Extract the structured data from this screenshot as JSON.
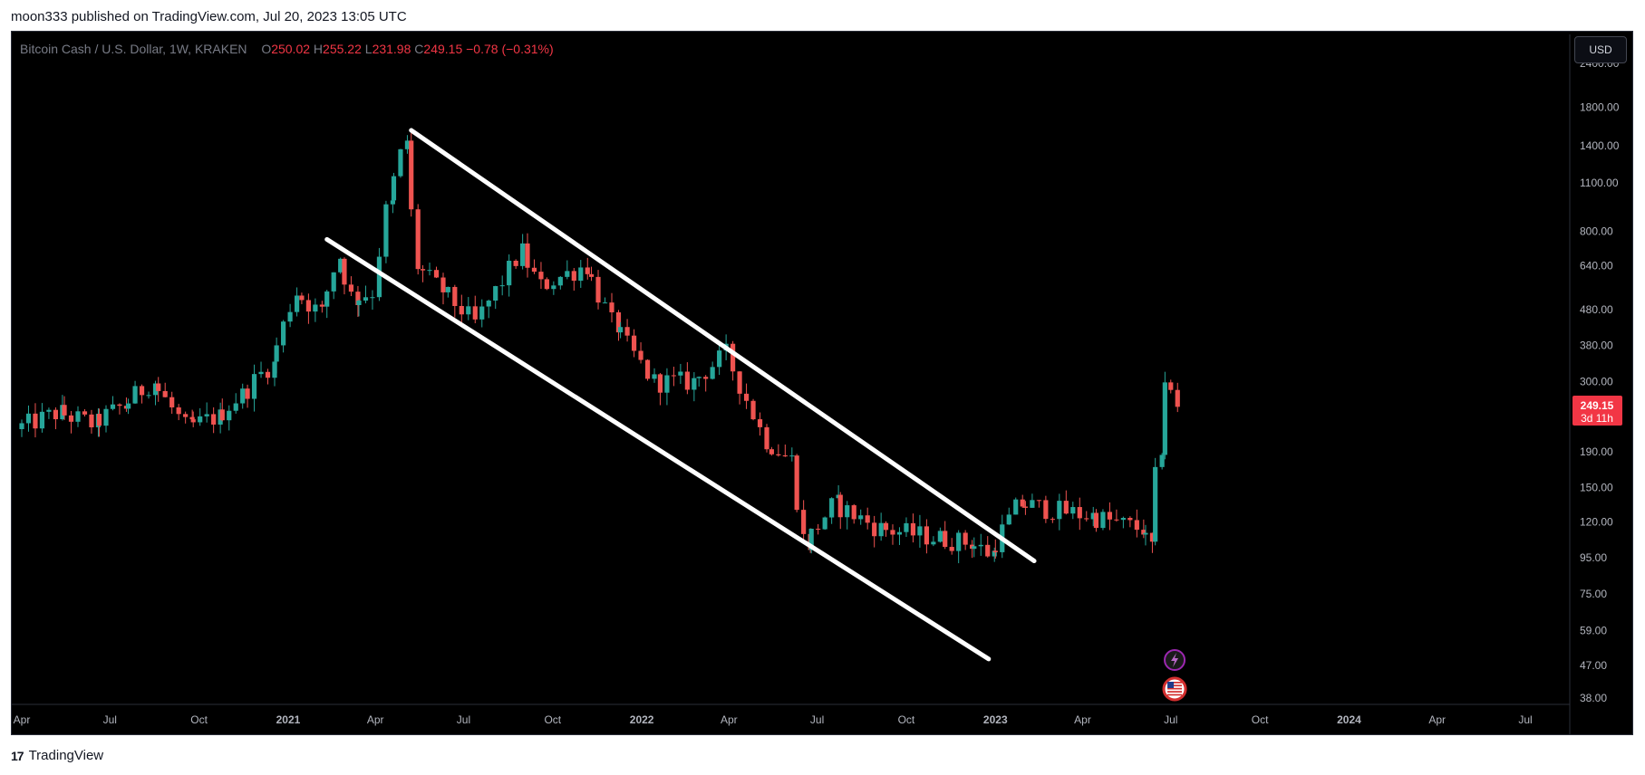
{
  "header": {
    "publish_text": "moon333 published on TradingView.com, Jul 20, 2023 13:05 UTC"
  },
  "legend": {
    "symbol": "Bitcoin Cash / U.S. Dollar, 1W, KRAKEN",
    "o_label": "O",
    "o_value": "250.02",
    "h_label": "H",
    "h_value": "255.22",
    "l_label": "L",
    "l_value": "231.98",
    "c_label": "C",
    "c_value": "249.15",
    "change": "−0.78 (−0.31%)"
  },
  "toolbar": {
    "currency_button": "USD"
  },
  "price_tag": {
    "price": "249.15",
    "countdown": "3d 11h"
  },
  "footer": {
    "brand": "TradingView",
    "logo_text": "17"
  },
  "colors": {
    "up": "#26a69a",
    "down": "#ef5350",
    "background": "#000000",
    "trendline": "#ffffff",
    "tag": "#f23645"
  },
  "icons": {
    "event_1": "lightning-icon",
    "event_2": "us-flag-icon"
  },
  "chart_data": {
    "type": "candlestick",
    "title": "Bitcoin Cash / U.S. Dollar, 1W, KRAKEN",
    "y_scale": "log",
    "y_ticks": [
      "2400.00",
      "1800.00",
      "1400.00",
      "1100.00",
      "800.00",
      "640.00",
      "480.00",
      "380.00",
      "300.00",
      "190.00",
      "150.00",
      "120.00",
      "95.00",
      "75.00",
      "59.00",
      "47.00",
      "38.00"
    ],
    "ylim": [
      36,
      2400
    ],
    "x_ticks": [
      "Apr",
      "Jul",
      "Oct",
      "2021",
      "Apr",
      "Jul",
      "Oct",
      "2022",
      "Apr",
      "Jul",
      "Oct",
      "2023",
      "Apr",
      "Jul",
      "Oct",
      "2024",
      "Apr",
      "Jul"
    ],
    "x_tick_dates": [
      "2020-04-01",
      "2020-07-01",
      "2020-10-01",
      "2021-01-01",
      "2021-04-01",
      "2021-07-01",
      "2021-10-01",
      "2022-01-01",
      "2022-04-01",
      "2022-07-01",
      "2022-10-01",
      "2023-01-01",
      "2023-04-01",
      "2023-07-01",
      "2023-10-01",
      "2024-01-01",
      "2024-04-01",
      "2024-07-01"
    ],
    "last_price": 249.15,
    "segments": [
      [
        "2020-04-01",
        220
      ],
      [
        "2020-05-15",
        245
      ],
      [
        "2020-06-20",
        228
      ],
      [
        "2020-07-20",
        255
      ],
      [
        "2020-08-20",
        300
      ],
      [
        "2020-09-25",
        222
      ],
      [
        "2020-10-25",
        238
      ],
      [
        "2020-11-20",
        275
      ],
      [
        "2020-12-20",
        335
      ],
      [
        "2021-01-15",
        540
      ],
      [
        "2021-02-10",
        470
      ],
      [
        "2021-02-28",
        680
      ],
      [
        "2021-03-15",
        515
      ],
      [
        "2021-04-05",
        540
      ],
      [
        "2021-04-20",
        950
      ],
      [
        "2021-05-08",
        1450
      ],
      [
        "2021-05-20",
        640
      ],
      [
        "2021-06-15",
        545
      ],
      [
        "2021-07-20",
        440
      ],
      [
        "2021-09-05",
        700
      ],
      [
        "2021-09-25",
        560
      ],
      [
        "2021-11-10",
        640
      ],
      [
        "2021-12-10",
        430
      ],
      [
        "2022-01-20",
        300
      ],
      [
        "2022-03-01",
        300
      ],
      [
        "2022-04-05",
        360
      ],
      [
        "2022-05-15",
        205
      ],
      [
        "2022-06-10",
        180
      ],
      [
        "2022-06-25",
        104
      ],
      [
        "2022-07-25",
        135
      ],
      [
        "2022-09-10",
        115
      ],
      [
        "2022-11-10",
        108
      ],
      [
        "2022-12-10",
        105
      ],
      [
        "2023-01-01",
        98
      ],
      [
        "2023-02-01",
        135
      ],
      [
        "2023-04-15",
        125
      ],
      [
        "2023-06-05",
        115
      ],
      [
        "2023-06-15",
        102
      ],
      [
        "2023-06-25",
        195
      ],
      [
        "2023-07-01",
        305
      ],
      [
        "2023-07-15",
        250
      ]
    ],
    "trendlines": [
      {
        "start": [
          "2021-05-08",
          1550
        ],
        "end": [
          "2023-02-10",
          93
        ]
      },
      {
        "start": [
          "2021-02-10",
          760
        ],
        "end": [
          "2022-12-25",
          49
        ]
      }
    ],
    "events": [
      {
        "date": "2023-07-05",
        "icon": "lightning-icon"
      },
      {
        "date": "2023-07-05",
        "icon": "us-flag-icon"
      }
    ]
  }
}
